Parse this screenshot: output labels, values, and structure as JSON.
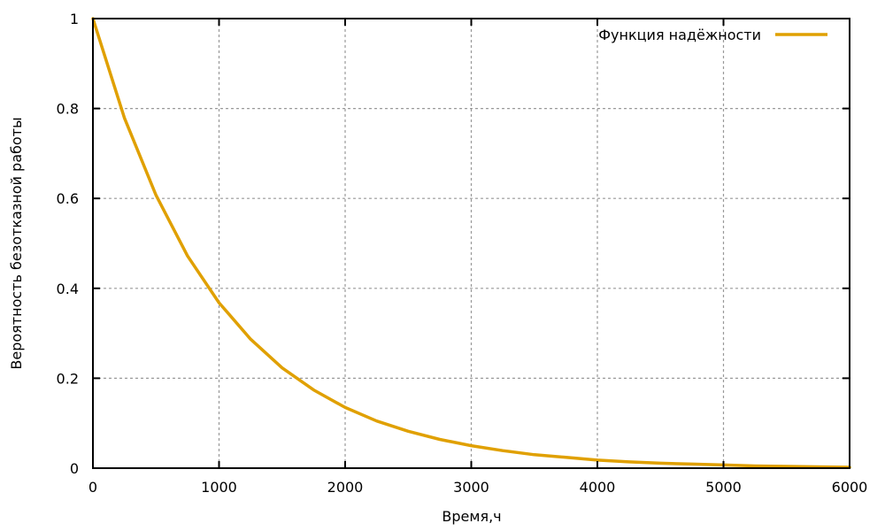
{
  "chart_data": {
    "type": "line",
    "title": "",
    "xlabel": "Время,ч",
    "ylabel": "Вероятность безотказной работы",
    "xlim": [
      0,
      6000
    ],
    "ylim": [
      0,
      1
    ],
    "x_ticks": [
      "0",
      "1000",
      "2000",
      "3000",
      "4000",
      "5000",
      "6000"
    ],
    "y_ticks": [
      "0",
      "0.2",
      "0.4",
      "0.6",
      "0.8",
      "1"
    ],
    "grid": true,
    "legend_position": "top-right",
    "series": [
      {
        "name": "Функция надёжности",
        "color": "#e0a000",
        "x": [
          0,
          250,
          500,
          750,
          1000,
          1250,
          1500,
          1750,
          2000,
          2250,
          2500,
          2750,
          3000,
          3250,
          3500,
          3750,
          4000,
          4250,
          4500,
          4750,
          5000,
          5250,
          5500,
          5750,
          6000
        ],
        "y": [
          1.0,
          0.779,
          0.607,
          0.472,
          0.368,
          0.287,
          0.223,
          0.174,
          0.135,
          0.105,
          0.082,
          0.064,
          0.05,
          0.039,
          0.03,
          0.024,
          0.018,
          0.014,
          0.011,
          0.009,
          0.007,
          0.005,
          0.004,
          0.003,
          0.002
        ]
      }
    ]
  }
}
